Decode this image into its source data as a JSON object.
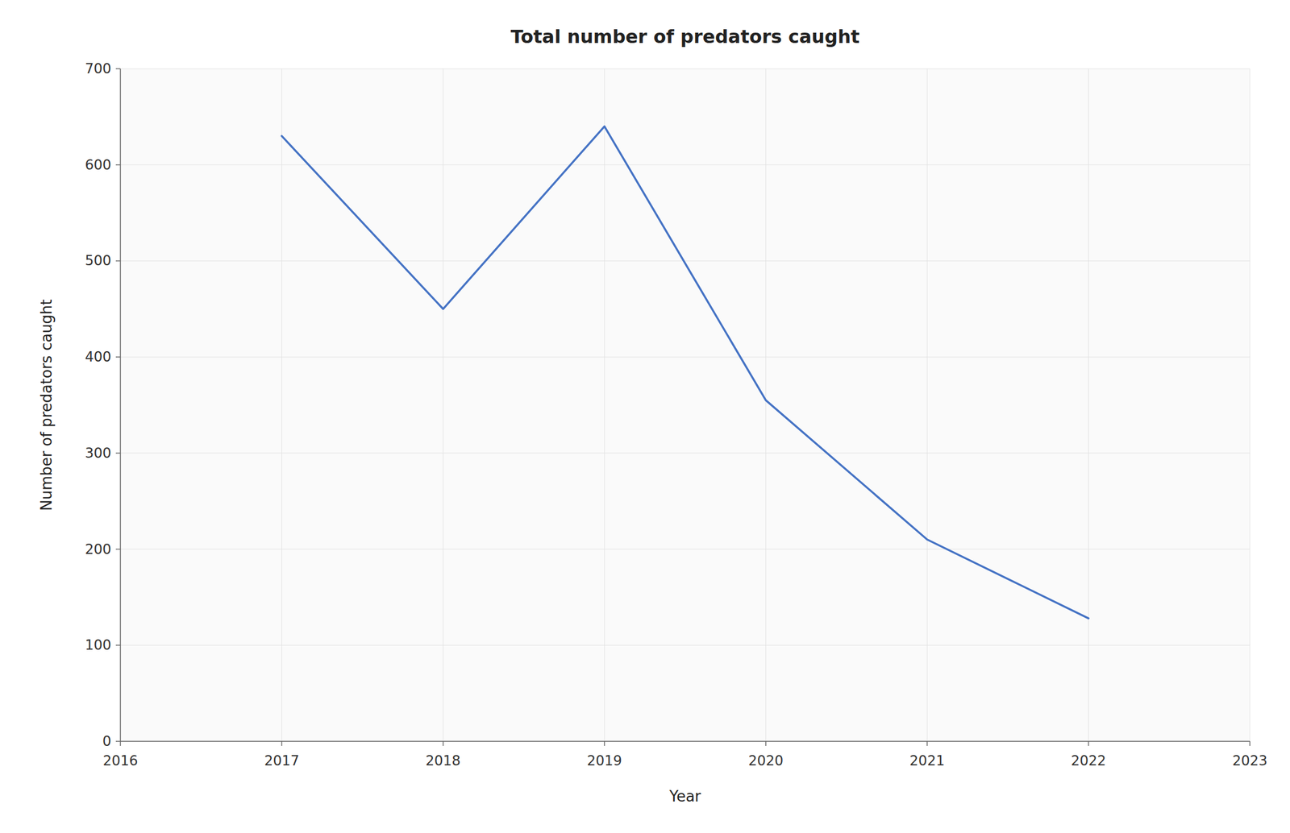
{
  "chart_data": {
    "type": "line",
    "title": "Total number of predators caught",
    "xlabel": "Year",
    "ylabel": "Number of predators caught",
    "x": [
      2017,
      2018,
      2019,
      2020,
      2021,
      2022
    ],
    "values": [
      630,
      450,
      640,
      355,
      210,
      128
    ],
    "color": "#4472C4",
    "xlim": [
      2016,
      2023
    ],
    "xticks": [
      2016,
      2017,
      2018,
      2019,
      2020,
      2021,
      2022,
      2023
    ],
    "ylim": [
      0,
      700
    ],
    "yticks": [
      0,
      100,
      200,
      300,
      400,
      500,
      600,
      700
    ],
    "grid": true
  }
}
